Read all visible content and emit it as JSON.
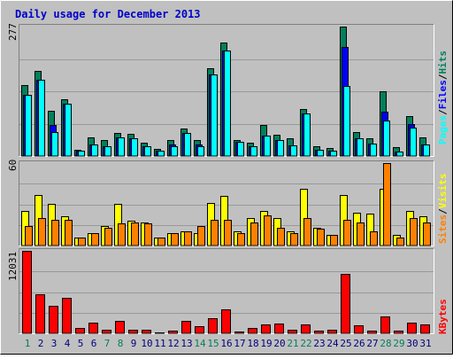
{
  "title": "Daily usage for December 2013",
  "colors": {
    "background": "#c0c0c0",
    "panel": "#c0c0c0",
    "grid": "#999999",
    "hits": "#00805c",
    "files": "#0000ff",
    "pages": "#00ffff",
    "visits": "#ffff00",
    "sites": "#ff8000",
    "kbytes": "#ff0000",
    "weekend_day": "#00805c",
    "weekday": "#000080"
  },
  "panels": {
    "top": {
      "ymax_label": "277",
      "legend": [
        {
          "text": "Pages",
          "color": "#00ffff"
        },
        {
          "text": "/",
          "color": "#000000"
        },
        {
          "text": "Files",
          "color": "#0000ff"
        },
        {
          "text": "/",
          "color": "#000000"
        },
        {
          "text": "Hits",
          "color": "#00805c"
        }
      ]
    },
    "middle": {
      "ymax_label": "60",
      "legend": [
        {
          "text": "Sites",
          "color": "#ff8000"
        },
        {
          "text": "/",
          "color": "#000000"
        },
        {
          "text": "Visits",
          "color": "#ffff00"
        }
      ]
    },
    "bottom": {
      "ymax_label": "12031",
      "legend": [
        {
          "text": "KBytes",
          "color": "#ff0000"
        }
      ]
    }
  },
  "chart_data": {
    "type": "bar",
    "title": "Daily usage for December 2013",
    "categories": [
      "1",
      "2",
      "3",
      "4",
      "5",
      "6",
      "7",
      "8",
      "9",
      "10",
      "11",
      "12",
      "13",
      "14",
      "15",
      "16",
      "17",
      "18",
      "19",
      "20",
      "21",
      "22",
      "23",
      "24",
      "25",
      "26",
      "27",
      "28",
      "29",
      "30",
      "31"
    ],
    "weekend": [
      true,
      false,
      false,
      false,
      false,
      false,
      true,
      true,
      false,
      false,
      false,
      false,
      false,
      true,
      true,
      false,
      false,
      false,
      false,
      false,
      true,
      true,
      false,
      false,
      false,
      false,
      false,
      true,
      true,
      false,
      false
    ],
    "panels": [
      {
        "ymax": 277,
        "series": [
          {
            "name": "Hits",
            "values": [
              152,
              182,
              96,
              121,
              14,
              40,
              34,
              49,
              48,
              28,
              16,
              35,
              58,
              34,
              187,
              243,
              35,
              28,
              67,
              45,
              38,
              101,
              21,
              18,
              277,
              51,
              37,
              138,
              19,
              86,
              40
            ]
          },
          {
            "name": "Files",
            "values": [
              130,
              163,
              67,
              112,
              11,
              24,
              20,
              40,
              37,
              21,
              11,
              25,
              49,
              24,
              174,
              226,
              31,
              20,
              44,
              35,
              23,
              91,
              13,
              11,
              233,
              38,
              27,
              95,
              9,
              68,
              24
            ]
          },
          {
            "name": "Pages",
            "values": [
              130,
              163,
              52,
              112,
              11,
              24,
              20,
              40,
              37,
              21,
              11,
              20,
              49,
              20,
              174,
              226,
              31,
              20,
              44,
              35,
              23,
              91,
              13,
              11,
              150,
              38,
              27,
              76,
              9,
              61,
              24
            ]
          }
        ]
      },
      {
        "ymax": 60,
        "series": [
          {
            "name": "Visits",
            "values": [
              25,
              37,
              30,
              21,
              6,
              9,
              14,
              30,
              18,
              17,
              6,
              9,
              10,
              9,
              31,
              36,
              10,
              20,
              25,
              20,
              10,
              41,
              13,
              8,
              37,
              24,
              23,
              41,
              8,
              25,
              21
            ]
          },
          {
            "name": "Sites",
            "values": [
              14,
              20,
              19,
              19,
              6,
              9,
              13,
              16,
              17,
              16,
              6,
              9,
              10,
              14,
              19,
              19,
              9,
              17,
              22,
              13,
              9,
              20,
              12,
              8,
              19,
              17,
              10,
              60,
              6,
              20,
              17
            ]
          }
        ]
      },
      {
        "ymax": 12031,
        "series": [
          {
            "name": "KBytes",
            "values": [
              12031,
              5700,
              3957,
              5157,
              813,
              1494,
              558,
              1807,
              524,
              464,
              192,
              423,
              1832,
              1045,
              2249,
              3534,
              299,
              737,
              1310,
              1436,
              468,
              1262,
              404,
              458,
              8629,
              1158,
              407,
              2470,
              344,
              1617,
              1310
            ]
          }
        ]
      }
    ]
  }
}
